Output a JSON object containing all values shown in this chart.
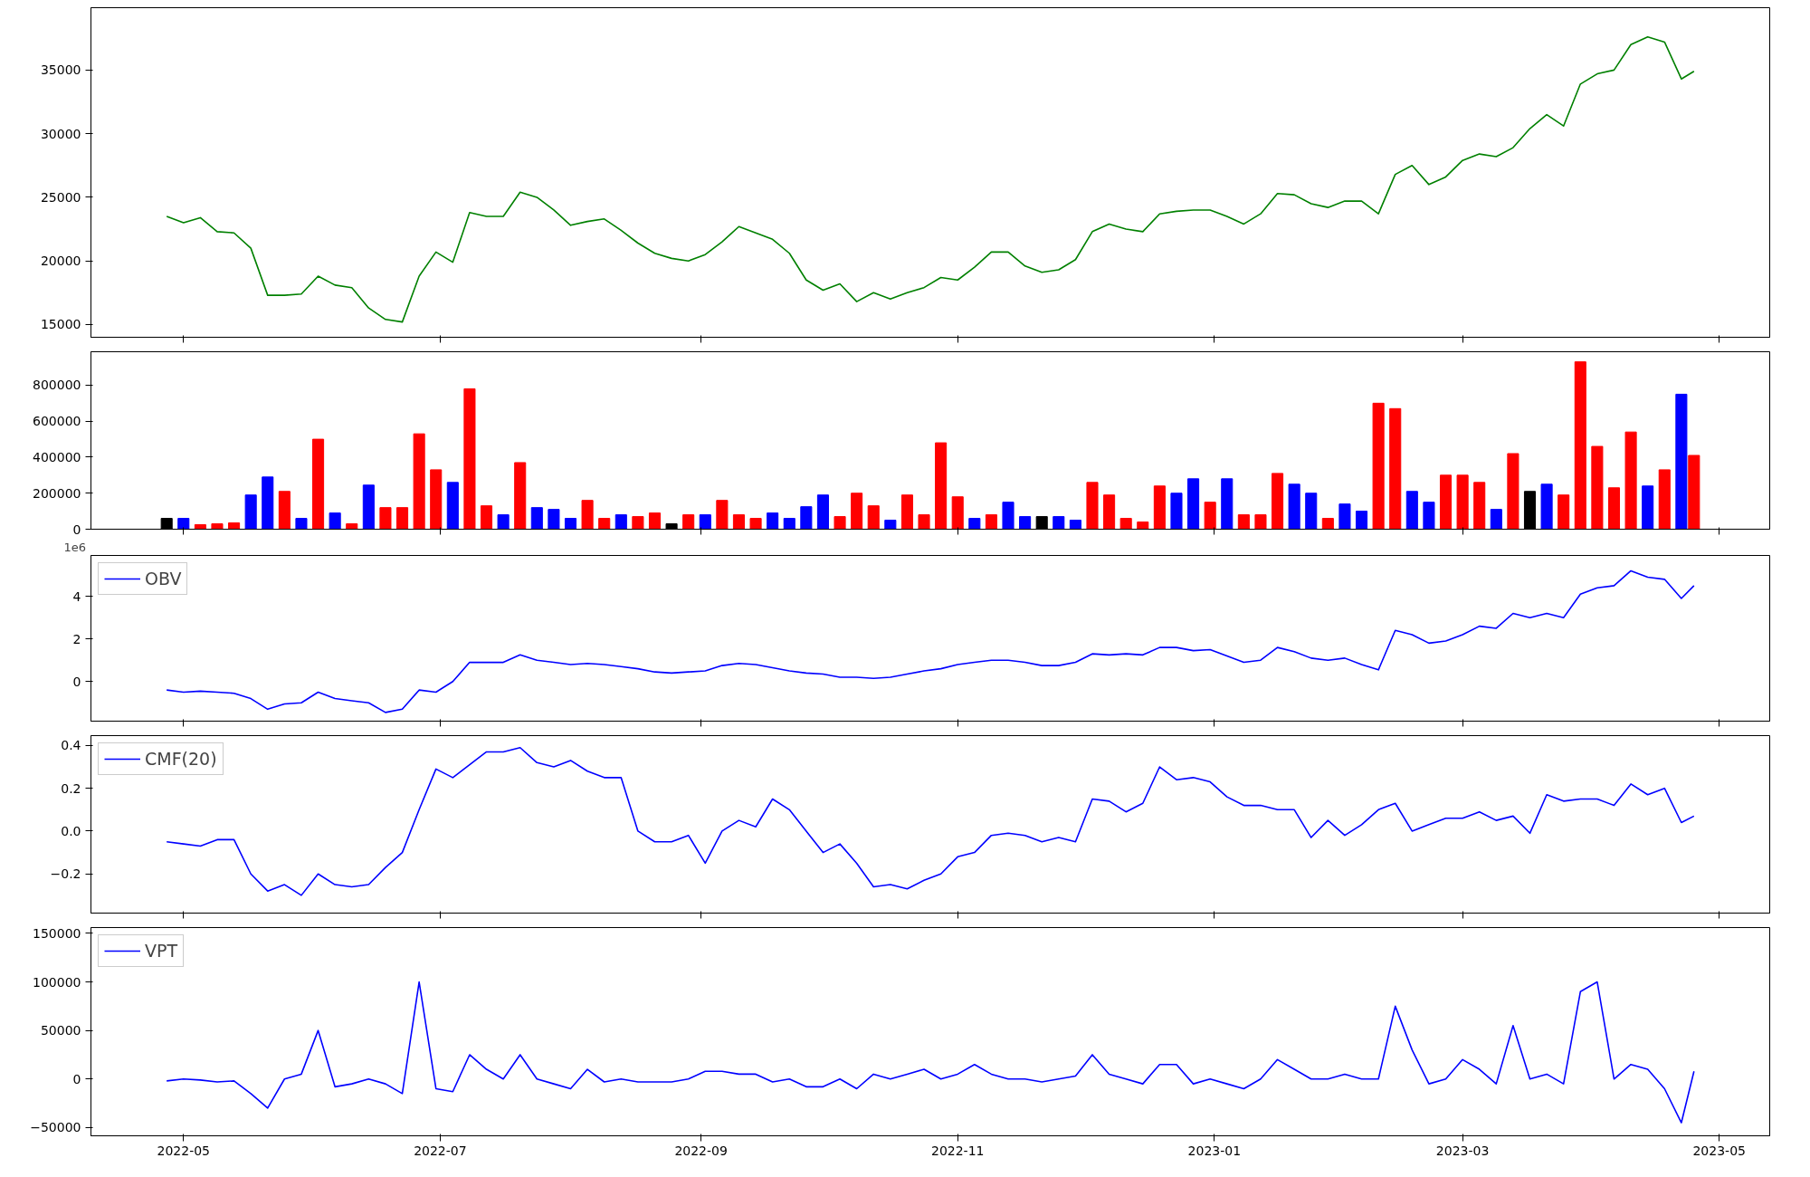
{
  "chart_data": [
    {
      "type": "line",
      "x": [
        "2022-04-27",
        "2022-05-01",
        "2022-05-05",
        "2022-05-09",
        "2022-05-13",
        "2022-05-17",
        "2022-05-21",
        "2022-05-25",
        "2022-05-29",
        "2022-06-02",
        "2022-06-06",
        "2022-06-10",
        "2022-06-14",
        "2022-06-18",
        "2022-06-22",
        "2022-06-26",
        "2022-06-30",
        "2022-07-04",
        "2022-07-08",
        "2022-07-12",
        "2022-07-16",
        "2022-07-20",
        "2022-07-24",
        "2022-07-28",
        "2022-08-01",
        "2022-08-05",
        "2022-08-09",
        "2022-08-13",
        "2022-08-17",
        "2022-08-21",
        "2022-08-25",
        "2022-08-29",
        "2022-09-02",
        "2022-09-06",
        "2022-09-10",
        "2022-09-14",
        "2022-09-18",
        "2022-09-22",
        "2022-09-26",
        "2022-09-30",
        "2022-10-04",
        "2022-10-08",
        "2022-10-12",
        "2022-10-16",
        "2022-10-20",
        "2022-10-24",
        "2022-10-28",
        "2022-11-01",
        "2022-11-05",
        "2022-11-09",
        "2022-11-13",
        "2022-11-17",
        "2022-11-21",
        "2022-11-25",
        "2022-11-29",
        "2022-12-03",
        "2022-12-07",
        "2022-12-11",
        "2022-12-15",
        "2022-12-19",
        "2022-12-23",
        "2022-12-27",
        "2022-12-31",
        "2023-01-04",
        "2023-01-08",
        "2023-01-12",
        "2023-01-16",
        "2023-01-20",
        "2023-01-24",
        "2023-01-28",
        "2023-02-01",
        "2023-02-05",
        "2023-02-09",
        "2023-02-13",
        "2023-02-17",
        "2023-02-21",
        "2023-02-25",
        "2023-03-01",
        "2023-03-05",
        "2023-03-09",
        "2023-03-13",
        "2023-03-17",
        "2023-03-21",
        "2023-03-25",
        "2023-03-29",
        "2023-04-02",
        "2023-04-06",
        "2023-04-10",
        "2023-04-14",
        "2023-04-18",
        "2023-04-22",
        "2023-04-25"
      ],
      "series": [
        {
          "color": "#008000",
          "values": [
            23500,
            23000,
            23400,
            22300,
            22200,
            21000,
            17300,
            17300,
            17400,
            18800,
            18100,
            17900,
            16300,
            15400,
            15200,
            18800,
            20700,
            19900,
            23800,
            23500,
            23500,
            25400,
            25000,
            24000,
            22800,
            23100,
            23300,
            22400,
            21400,
            20600,
            20200,
            20000,
            20500,
            21500,
            22700,
            22200,
            21700,
            20600,
            18500,
            17700,
            18200,
            16800,
            17500,
            17000,
            17500,
            17900,
            18700,
            18500,
            19500,
            20700,
            20700,
            19600,
            19100,
            19300,
            20100,
            22300,
            22900,
            22500,
            22300,
            23700,
            23900,
            24000,
            24000,
            23500,
            22900,
            23700,
            25300,
            25200,
            24500,
            24200,
            24700,
            24700,
            23700,
            26800,
            27500,
            26000,
            26600,
            27900,
            28400,
            28200,
            28900,
            30400,
            31500,
            30600,
            33900,
            34700,
            35000,
            37000,
            37600,
            37200,
            34300,
            34900
          ]
        }
      ],
      "xlim": [
        "2022-04-09",
        "2023-05-13"
      ],
      "xticks": [
        "2022-05",
        "2022-07",
        "2022-09",
        "2022-11",
        "2023-01",
        "2023-03",
        "2023-05"
      ],
      "ylim": [
        14000,
        39900
      ],
      "yticks": [
        15000,
        20000,
        25000,
        30000,
        35000
      ],
      "tick_labels": "y",
      "grid": false
    },
    {
      "type": "bar",
      "x": [
        "2022-04-27",
        "2022-05-01",
        "2022-05-05",
        "2022-05-09",
        "2022-05-13",
        "2022-05-17",
        "2022-05-21",
        "2022-05-25",
        "2022-05-29",
        "2022-06-02",
        "2022-06-06",
        "2022-06-10",
        "2022-06-14",
        "2022-06-18",
        "2022-06-22",
        "2022-06-26",
        "2022-06-30",
        "2022-07-04",
        "2022-07-08",
        "2022-07-12",
        "2022-07-16",
        "2022-07-20",
        "2022-07-24",
        "2022-07-28",
        "2022-08-01",
        "2022-08-05",
        "2022-08-09",
        "2022-08-13",
        "2022-08-17",
        "2022-08-21",
        "2022-08-25",
        "2022-08-29",
        "2022-09-02",
        "2022-09-06",
        "2022-09-10",
        "2022-09-14",
        "2022-09-18",
        "2022-09-22",
        "2022-09-26",
        "2022-09-30",
        "2022-10-04",
        "2022-10-08",
        "2022-10-12",
        "2022-10-16",
        "2022-10-20",
        "2022-10-24",
        "2022-10-28",
        "2022-11-01",
        "2022-11-05",
        "2022-11-09",
        "2022-11-13",
        "2022-11-17",
        "2022-11-21",
        "2022-11-25",
        "2022-11-29",
        "2022-12-03",
        "2022-12-07",
        "2022-12-11",
        "2022-12-15",
        "2022-12-19",
        "2022-12-23",
        "2022-12-27",
        "2022-12-31",
        "2023-01-04",
        "2023-01-08",
        "2023-01-12",
        "2023-01-16",
        "2023-01-20",
        "2023-01-24",
        "2023-01-28",
        "2023-02-01",
        "2023-02-05",
        "2023-02-09",
        "2023-02-13",
        "2023-02-17",
        "2023-02-21",
        "2023-02-25",
        "2023-03-01",
        "2023-03-05",
        "2023-03-09",
        "2023-03-13",
        "2023-03-17",
        "2023-03-21",
        "2023-03-25",
        "2023-03-29",
        "2023-04-02",
        "2023-04-06",
        "2023-04-10",
        "2023-04-14",
        "2023-04-18",
        "2023-04-22",
        "2023-04-25"
      ],
      "series": [
        {
          "values": [
            60000,
            60000,
            25000,
            30000,
            35000,
            190000,
            290000,
            210000,
            60000,
            500000,
            90000,
            30000,
            245000,
            120000,
            120000,
            530000,
            330000,
            260000,
            780000,
            130000,
            80000,
            370000,
            120000,
            110000,
            60000,
            160000,
            60000,
            80000,
            70000,
            90000,
            30000,
            80000,
            80000,
            160000,
            80000,
            60000,
            90000,
            60000,
            125000,
            190000,
            70000,
            200000,
            130000,
            50000,
            190000,
            80000,
            480000,
            180000,
            60000,
            80000,
            150000,
            70000,
            70000,
            70000,
            50000,
            260000,
            190000,
            60000,
            40000,
            240000,
            200000,
            280000,
            150000,
            280000,
            80000,
            80000,
            310000,
            250000,
            200000,
            60000,
            140000,
            100000,
            700000,
            670000,
            210000,
            150000,
            300000,
            300000,
            260000,
            110000,
            420000,
            210000,
            250000,
            190000,
            930000,
            460000,
            230000,
            540000,
            240000,
            330000,
            750000,
            410000
          ],
          "colors": [
            "#000000",
            "#0000ff",
            "#ff0000",
            "#ff0000",
            "#ff0000",
            "#0000ff",
            "#0000ff",
            "#ff0000",
            "#0000ff",
            "#ff0000",
            "#0000ff",
            "#ff0000",
            "#0000ff",
            "#ff0000",
            "#ff0000",
            "#ff0000",
            "#ff0000",
            "#0000ff",
            "#ff0000",
            "#ff0000",
            "#0000ff",
            "#ff0000",
            "#0000ff",
            "#0000ff",
            "#0000ff",
            "#ff0000",
            "#ff0000",
            "#0000ff",
            "#ff0000",
            "#ff0000",
            "#000000",
            "#ff0000",
            "#0000ff",
            "#ff0000",
            "#ff0000",
            "#ff0000",
            "#0000ff",
            "#0000ff",
            "#0000ff",
            "#0000ff",
            "#ff0000",
            "#ff0000",
            "#ff0000",
            "#0000ff",
            "#ff0000",
            "#ff0000",
            "#ff0000",
            "#ff0000",
            "#0000ff",
            "#ff0000",
            "#0000ff",
            "#0000ff",
            "#000000",
            "#0000ff",
            "#0000ff",
            "#ff0000",
            "#ff0000",
            "#ff0000",
            "#ff0000",
            "#ff0000",
            "#0000ff",
            "#0000ff",
            "#ff0000",
            "#0000ff",
            "#ff0000",
            "#ff0000",
            "#ff0000",
            "#0000ff",
            "#0000ff",
            "#ff0000",
            "#0000ff",
            "#0000ff",
            "#ff0000",
            "#ff0000",
            "#0000ff",
            "#0000ff",
            "#ff0000",
            "#ff0000",
            "#ff0000",
            "#0000ff",
            "#ff0000",
            "#000000",
            "#0000ff",
            "#ff0000",
            "#ff0000",
            "#ff0000",
            "#ff0000",
            "#ff0000",
            "#0000ff",
            "#ff0000",
            "#0000ff",
            "#ff0000"
          ]
        }
      ],
      "xlim": [
        "2022-04-09",
        "2023-05-13"
      ],
      "xticks": [
        "2022-05",
        "2022-07",
        "2022-09",
        "2022-11",
        "2023-01",
        "2023-03",
        "2023-05"
      ],
      "ylim": [
        0,
        986000
      ],
      "yticks": [
        0,
        200000,
        400000,
        600000,
        800000
      ],
      "tick_labels": "y",
      "grid": false
    },
    {
      "type": "line",
      "annotations": [
        "1e6"
      ],
      "legend": "top left",
      "x": [
        "2022-04-27",
        "2022-05-01",
        "2022-05-05",
        "2022-05-09",
        "2022-05-13",
        "2022-05-17",
        "2022-05-21",
        "2022-05-25",
        "2022-05-29",
        "2022-06-02",
        "2022-06-06",
        "2022-06-10",
        "2022-06-14",
        "2022-06-18",
        "2022-06-22",
        "2022-06-26",
        "2022-06-30",
        "2022-07-04",
        "2022-07-08",
        "2022-07-12",
        "2022-07-16",
        "2022-07-20",
        "2022-07-24",
        "2022-07-28",
        "2022-08-01",
        "2022-08-05",
        "2022-08-09",
        "2022-08-13",
        "2022-08-17",
        "2022-08-21",
        "2022-08-25",
        "2022-08-29",
        "2022-09-02",
        "2022-09-06",
        "2022-09-10",
        "2022-09-14",
        "2022-09-18",
        "2022-09-22",
        "2022-09-26",
        "2022-09-30",
        "2022-10-04",
        "2022-10-08",
        "2022-10-12",
        "2022-10-16",
        "2022-10-20",
        "2022-10-24",
        "2022-10-28",
        "2022-11-01",
        "2022-11-05",
        "2022-11-09",
        "2022-11-13",
        "2022-11-17",
        "2022-11-21",
        "2022-11-25",
        "2022-11-29",
        "2022-12-03",
        "2022-12-07",
        "2022-12-11",
        "2022-12-15",
        "2022-12-19",
        "2022-12-23",
        "2022-12-27",
        "2022-12-31",
        "2023-01-04",
        "2023-01-08",
        "2023-01-12",
        "2023-01-16",
        "2023-01-20",
        "2023-01-24",
        "2023-01-28",
        "2023-02-01",
        "2023-02-05",
        "2023-02-09",
        "2023-02-13",
        "2023-02-17",
        "2023-02-21",
        "2023-02-25",
        "2023-03-01",
        "2023-03-05",
        "2023-03-09",
        "2023-03-13",
        "2023-03-17",
        "2023-03-21",
        "2023-03-25",
        "2023-03-29",
        "2023-04-02",
        "2023-04-06",
        "2023-04-10",
        "2023-04-14",
        "2023-04-18",
        "2023-04-22",
        "2023-04-25"
      ],
      "series": [
        {
          "name": "OBV",
          "color": "#0000ff",
          "values": [
            -0.4,
            -0.5,
            -0.45,
            -0.5,
            -0.55,
            -0.8,
            -1.3,
            -1.05,
            -1.0,
            -0.5,
            -0.8,
            -0.9,
            -1.0,
            -1.45,
            -1.3,
            -0.4,
            -0.5,
            0.0,
            0.9,
            0.9,
            0.9,
            1.25,
            1.0,
            0.9,
            0.8,
            0.85,
            0.8,
            0.7,
            0.6,
            0.45,
            0.4,
            0.45,
            0.5,
            0.75,
            0.85,
            0.8,
            0.65,
            0.5,
            0.4,
            0.35,
            0.2,
            0.2,
            0.15,
            0.2,
            0.35,
            0.5,
            0.6,
            0.8,
            0.9,
            1.0,
            1.0,
            0.9,
            0.75,
            0.75,
            0.9,
            1.3,
            1.25,
            1.3,
            1.25,
            1.6,
            1.6,
            1.45,
            1.5,
            1.2,
            0.9,
            1.0,
            1.6,
            1.4,
            1.1,
            1.0,
            1.1,
            0.8,
            0.55,
            2.4,
            2.2,
            1.8,
            1.9,
            2.2,
            2.6,
            2.5,
            3.2,
            3.0,
            3.2,
            3.0,
            4.1,
            4.4,
            4.5,
            5.2,
            4.9,
            4.8,
            3.9,
            4.5
          ]
        }
      ],
      "xlim": [
        "2022-04-09",
        "2023-05-13"
      ],
      "xticks": [
        "2022-05",
        "2022-07",
        "2022-09",
        "2022-11",
        "2023-01",
        "2023-03",
        "2023-05"
      ],
      "ylim": [
        -1.86,
        5.92
      ],
      "yticks": [
        0,
        2,
        4
      ],
      "tick_labels": "y",
      "grid": false
    },
    {
      "type": "line",
      "legend": "top left",
      "x": [
        "2022-04-27",
        "2022-05-01",
        "2022-05-05",
        "2022-05-09",
        "2022-05-13",
        "2022-05-17",
        "2022-05-21",
        "2022-05-25",
        "2022-05-29",
        "2022-06-02",
        "2022-06-06",
        "2022-06-10",
        "2022-06-14",
        "2022-06-18",
        "2022-06-22",
        "2022-06-26",
        "2022-06-30",
        "2022-07-04",
        "2022-07-08",
        "2022-07-12",
        "2022-07-16",
        "2022-07-20",
        "2022-07-24",
        "2022-07-28",
        "2022-08-01",
        "2022-08-05",
        "2022-08-09",
        "2022-08-13",
        "2022-08-17",
        "2022-08-21",
        "2022-08-25",
        "2022-08-29",
        "2022-09-02",
        "2022-09-06",
        "2022-09-10",
        "2022-09-14",
        "2022-09-18",
        "2022-09-22",
        "2022-09-26",
        "2022-09-30",
        "2022-10-04",
        "2022-10-08",
        "2022-10-12",
        "2022-10-16",
        "2022-10-20",
        "2022-10-24",
        "2022-10-28",
        "2022-11-01",
        "2022-11-05",
        "2022-11-09",
        "2022-11-13",
        "2022-11-17",
        "2022-11-21",
        "2022-11-25",
        "2022-11-29",
        "2022-12-03",
        "2022-12-07",
        "2022-12-11",
        "2022-12-15",
        "2022-12-19",
        "2022-12-23",
        "2022-12-27",
        "2022-12-31",
        "2023-01-04",
        "2023-01-08",
        "2023-01-12",
        "2023-01-16",
        "2023-01-20",
        "2023-01-24",
        "2023-01-28",
        "2023-02-01",
        "2023-02-05",
        "2023-02-09",
        "2023-02-13",
        "2023-02-17",
        "2023-02-21",
        "2023-02-25",
        "2023-03-01",
        "2023-03-05",
        "2023-03-09",
        "2023-03-13",
        "2023-03-17",
        "2023-03-21",
        "2023-03-25",
        "2023-03-29",
        "2023-04-02",
        "2023-04-06",
        "2023-04-10",
        "2023-04-14",
        "2023-04-18",
        "2023-04-22",
        "2023-04-25"
      ],
      "series": [
        {
          "name": "CMF(20)",
          "color": "#0000ff",
          "values": [
            -0.05,
            -0.06,
            -0.07,
            -0.04,
            -0.04,
            -0.2,
            -0.28,
            -0.25,
            -0.3,
            -0.2,
            -0.25,
            -0.26,
            -0.25,
            -0.17,
            -0.1,
            0.1,
            0.29,
            0.25,
            0.31,
            0.37,
            0.37,
            0.39,
            0.32,
            0.3,
            0.33,
            0.28,
            0.25,
            0.25,
            0.0,
            -0.05,
            -0.05,
            -0.02,
            -0.15,
            0.0,
            0.05,
            0.02,
            0.15,
            0.1,
            0.0,
            -0.1,
            -0.06,
            -0.15,
            -0.26,
            -0.25,
            -0.27,
            -0.23,
            -0.2,
            -0.12,
            -0.1,
            -0.02,
            -0.01,
            -0.02,
            -0.05,
            -0.03,
            -0.05,
            0.15,
            0.14,
            0.09,
            0.13,
            0.3,
            0.24,
            0.25,
            0.23,
            0.16,
            0.12,
            0.12,
            0.1,
            0.1,
            -0.03,
            0.05,
            -0.02,
            0.03,
            0.1,
            0.13,
            0.0,
            0.03,
            0.06,
            0.06,
            0.09,
            0.05,
            0.07,
            -0.01,
            0.17,
            0.14,
            0.15,
            0.15,
            0.12,
            0.22,
            0.17,
            0.2,
            0.04,
            0.07
          ]
        }
      ],
      "xlim": [
        "2022-04-09",
        "2023-05-13"
      ],
      "xticks": [
        "2022-05",
        "2022-07",
        "2022-09",
        "2022-11",
        "2023-01",
        "2023-03",
        "2023-05"
      ],
      "ylim": [
        -0.383,
        0.446
      ],
      "yticks": [
        {
          "value": -0.2,
          "label": "−0.2"
        },
        {
          "value": 0,
          "label": "0.0"
        },
        0.2,
        0.4
      ],
      "tick_labels": "y",
      "grid": false
    },
    {
      "type": "line",
      "legend": "top left",
      "x": [
        "2022-04-27",
        "2022-05-01",
        "2022-05-05",
        "2022-05-09",
        "2022-05-13",
        "2022-05-17",
        "2022-05-21",
        "2022-05-25",
        "2022-05-29",
        "2022-06-02",
        "2022-06-06",
        "2022-06-10",
        "2022-06-14",
        "2022-06-18",
        "2022-06-22",
        "2022-06-26",
        "2022-06-30",
        "2022-07-04",
        "2022-07-08",
        "2022-07-12",
        "2022-07-16",
        "2022-07-20",
        "2022-07-24",
        "2022-07-28",
        "2022-08-01",
        "2022-08-05",
        "2022-08-09",
        "2022-08-13",
        "2022-08-17",
        "2022-08-21",
        "2022-08-25",
        "2022-08-29",
        "2022-09-02",
        "2022-09-06",
        "2022-09-10",
        "2022-09-14",
        "2022-09-18",
        "2022-09-22",
        "2022-09-26",
        "2022-09-30",
        "2022-10-04",
        "2022-10-08",
        "2022-10-12",
        "2022-10-16",
        "2022-10-20",
        "2022-10-24",
        "2022-10-28",
        "2022-11-01",
        "2022-11-05",
        "2022-11-09",
        "2022-11-13",
        "2022-11-17",
        "2022-11-21",
        "2022-11-25",
        "2022-11-29",
        "2022-12-03",
        "2022-12-07",
        "2022-12-11",
        "2022-12-15",
        "2022-12-19",
        "2022-12-23",
        "2022-12-27",
        "2022-12-31",
        "2023-01-04",
        "2023-01-08",
        "2023-01-12",
        "2023-01-16",
        "2023-01-20",
        "2023-01-24",
        "2023-01-28",
        "2023-02-01",
        "2023-02-05",
        "2023-02-09",
        "2023-02-13",
        "2023-02-17",
        "2023-02-21",
        "2023-02-25",
        "2023-03-01",
        "2023-03-05",
        "2023-03-09",
        "2023-03-13",
        "2023-03-17",
        "2023-03-21",
        "2023-03-25",
        "2023-03-29",
        "2023-04-02",
        "2023-04-06",
        "2023-04-10",
        "2023-04-14",
        "2023-04-18",
        "2023-04-22",
        "2023-04-25"
      ],
      "series": [
        {
          "name": "VPT",
          "color": "#0000ff",
          "values": [
            -2000,
            0,
            -1000,
            -3000,
            -2000,
            -15000,
            -30000,
            0,
            5000,
            50000,
            -8000,
            -5000,
            0,
            -5000,
            -15000,
            100000,
            -10000,
            -13000,
            25000,
            10000,
            0,
            25000,
            0,
            -5000,
            -10000,
            10000,
            -3000,
            0,
            -3000,
            -3000,
            -3000,
            0,
            8000,
            8000,
            5000,
            5000,
            -3000,
            0,
            -8000,
            -8000,
            0,
            -10000,
            5000,
            0,
            5000,
            10000,
            0,
            5000,
            15000,
            5000,
            0,
            0,
            -3000,
            0,
            3000,
            25000,
            5000,
            0,
            -5000,
            15000,
            15000,
            -5000,
            0,
            -5000,
            -10000,
            0,
            20000,
            10000,
            0,
            0,
            5000,
            0,
            0,
            75000,
            30000,
            -5000,
            0,
            20000,
            10000,
            -5000,
            55000,
            0,
            5000,
            -5000,
            90000,
            100000,
            0,
            15000,
            10000,
            -10000,
            -45000,
            8000
          ]
        }
      ],
      "xlim": [
        "2022-04-09",
        "2023-05-13"
      ],
      "xticks": [
        "2022-05",
        "2022-07",
        "2022-09",
        "2022-11",
        "2023-01",
        "2023-03",
        "2023-05"
      ],
      "ylim": [
        -58500,
        156000
      ],
      "yticks": [
        {
          "value": -50000,
          "label": "−50000"
        },
        0,
        50000,
        100000,
        150000
      ],
      "grid": false
    }
  ]
}
